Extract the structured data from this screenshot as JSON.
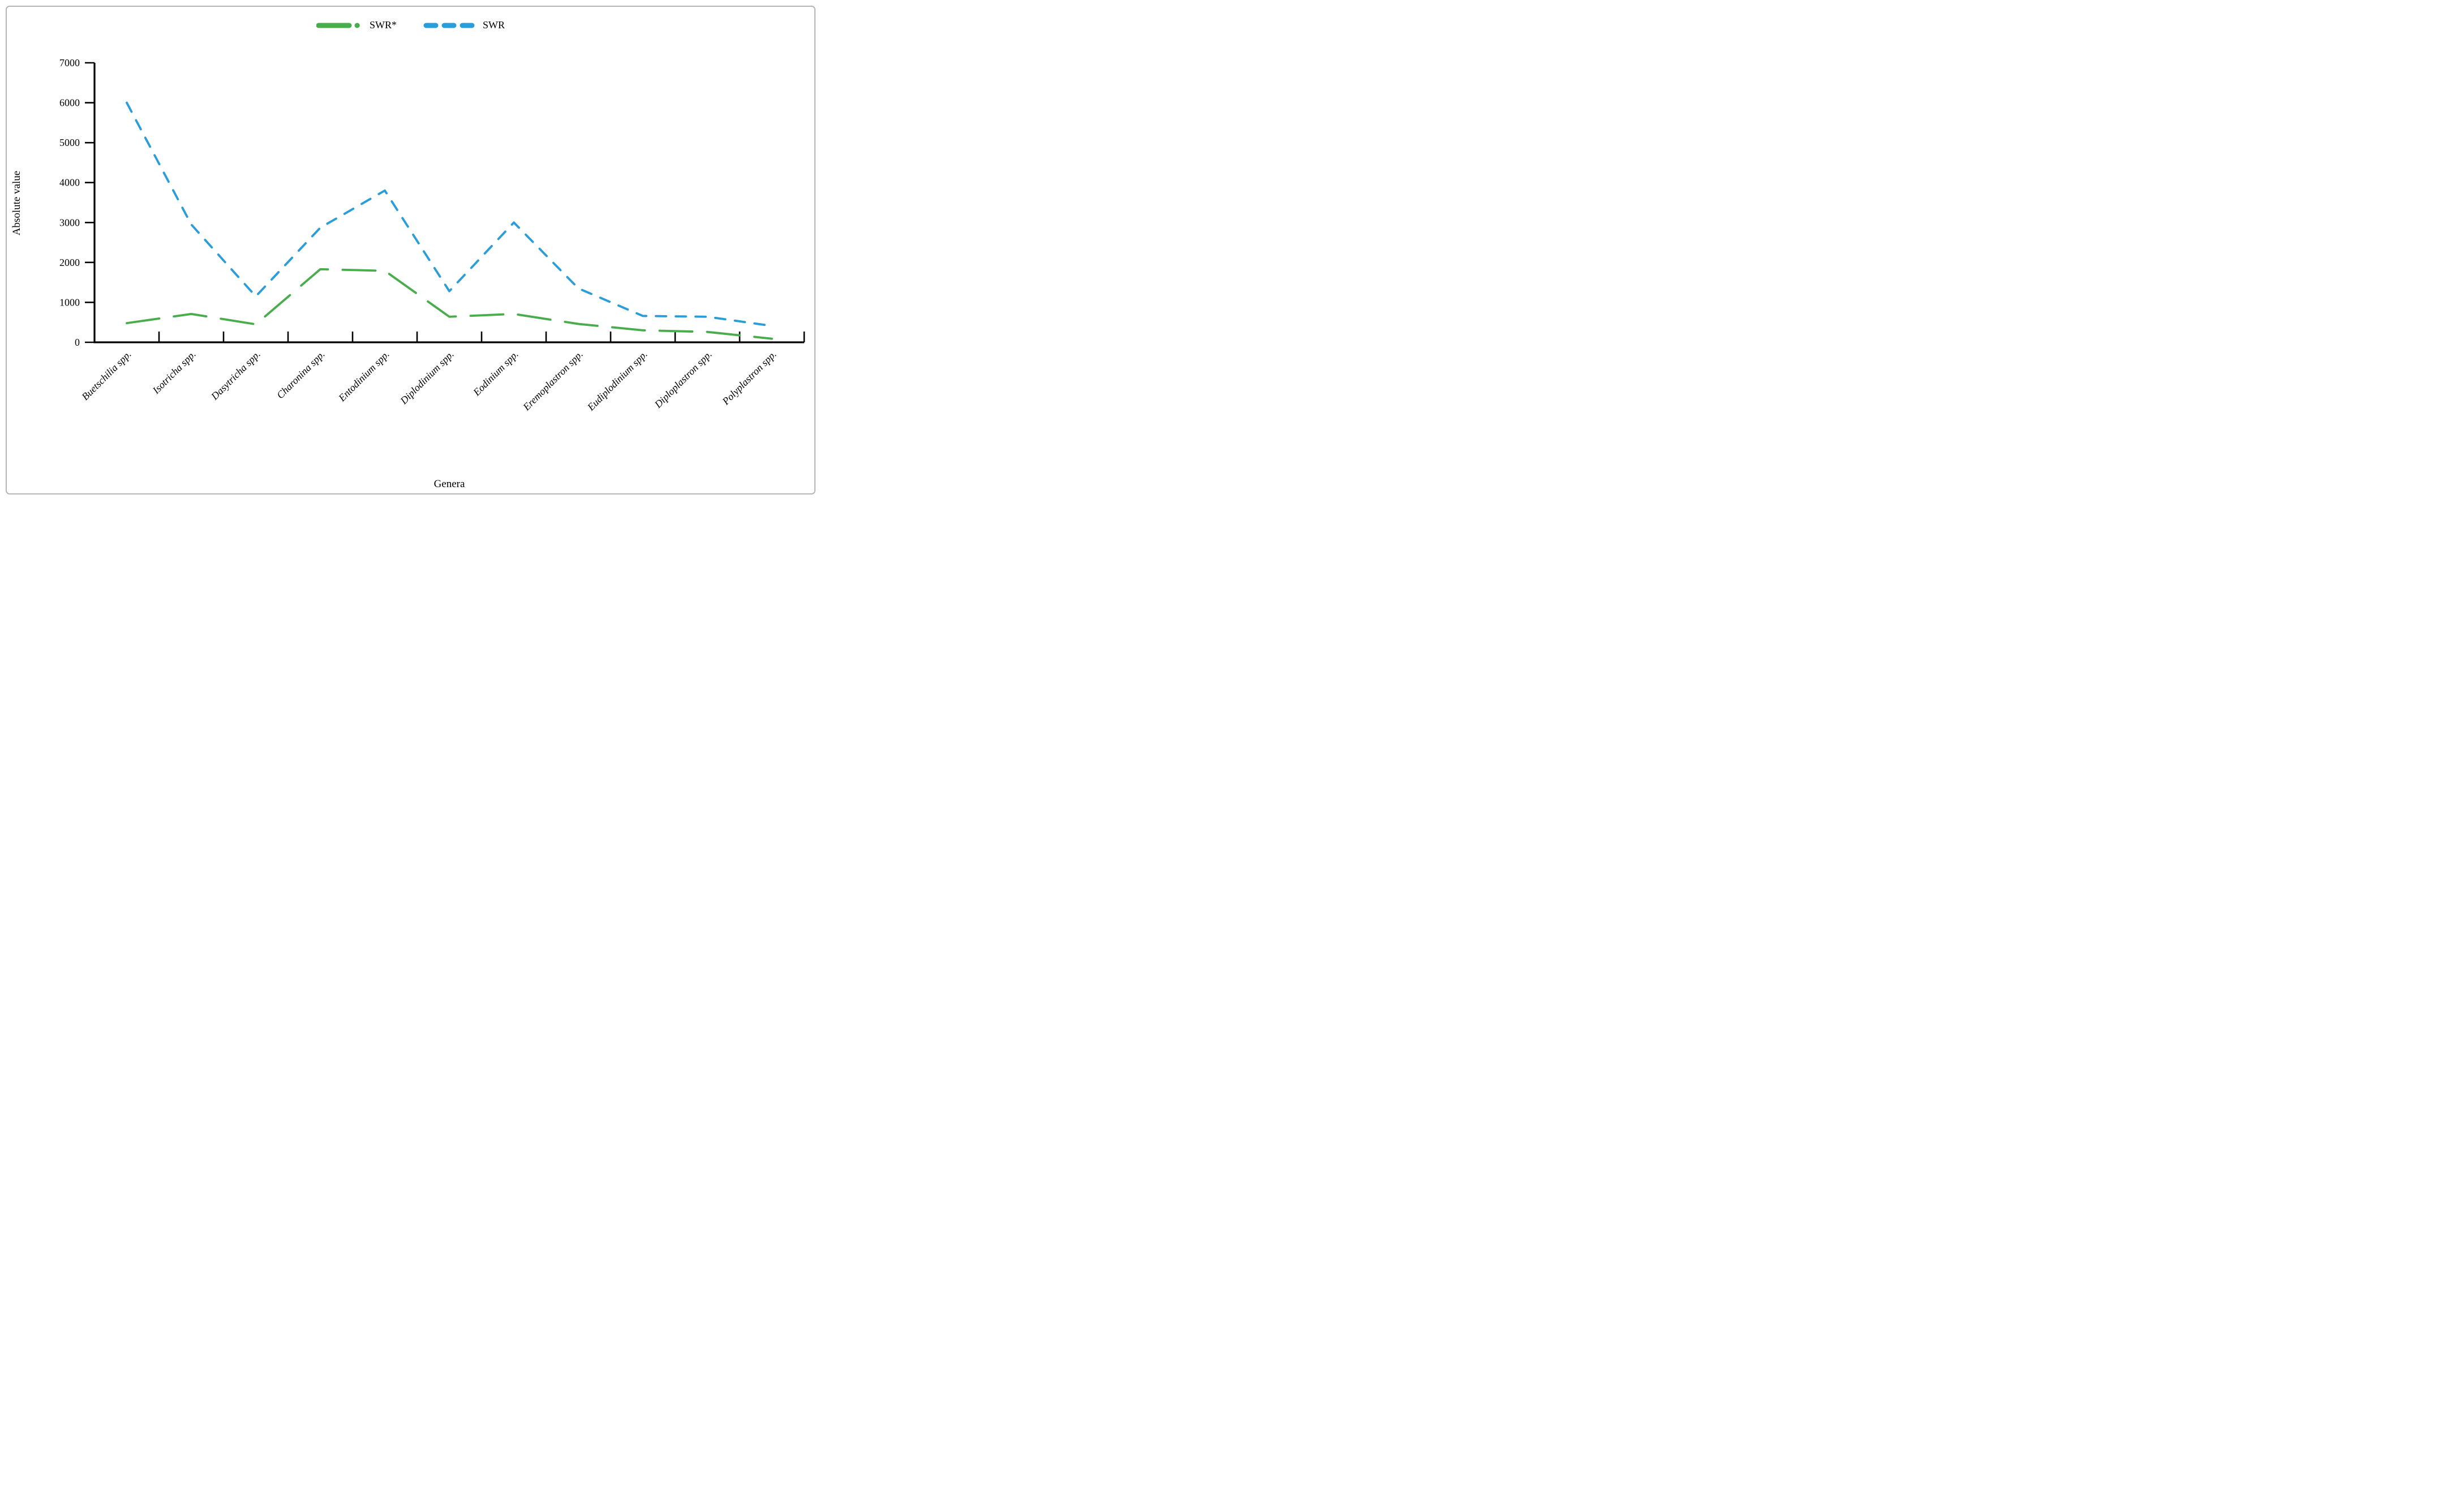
{
  "figure": {
    "background": "#ffffff",
    "border_color": "#b5b5b5",
    "axis_color": "#000000",
    "text_color": "#000000"
  },
  "legend": {
    "position": "top-center",
    "items": [
      {
        "label": "SWR*",
        "color": "#4aad4d",
        "style": "long-dash-dot"
      },
      {
        "label": "SWR",
        "color": "#2b9dd8",
        "style": "dash"
      }
    ]
  },
  "chart_data": {
    "type": "line",
    "title": "",
    "xlabel": "Genera",
    "ylabel": "Absolute value",
    "ylim": [
      0,
      7000
    ],
    "yticks": [
      0,
      1000,
      2000,
      3000,
      4000,
      5000,
      6000,
      7000
    ],
    "grid": false,
    "legend_position": "top-center",
    "categories": [
      "Buetschilia spp.",
      "Isotricha spp.",
      "Dasytricha spp.",
      "Charonina spp.",
      "Entodinium spp.",
      "Diplodinium spp.",
      "Eodinium spp.",
      "Eremoplastron spp.",
      "Eudiplodinium spp.",
      "Diploplastron spp.",
      "Polyplastron spp."
    ],
    "series": [
      {
        "name": "SWR*",
        "color": "#4aad4d",
        "dash": "long-dash",
        "values": [
          480,
          710,
          450,
          1830,
          1790,
          640,
          710,
          460,
          300,
          260,
          90
        ]
      },
      {
        "name": "SWR",
        "color": "#2b9dd8",
        "dash": "dash",
        "values": [
          6000,
          2950,
          1150,
          2870,
          3800,
          1280,
          3000,
          1350,
          660,
          640,
          410
        ]
      }
    ]
  }
}
